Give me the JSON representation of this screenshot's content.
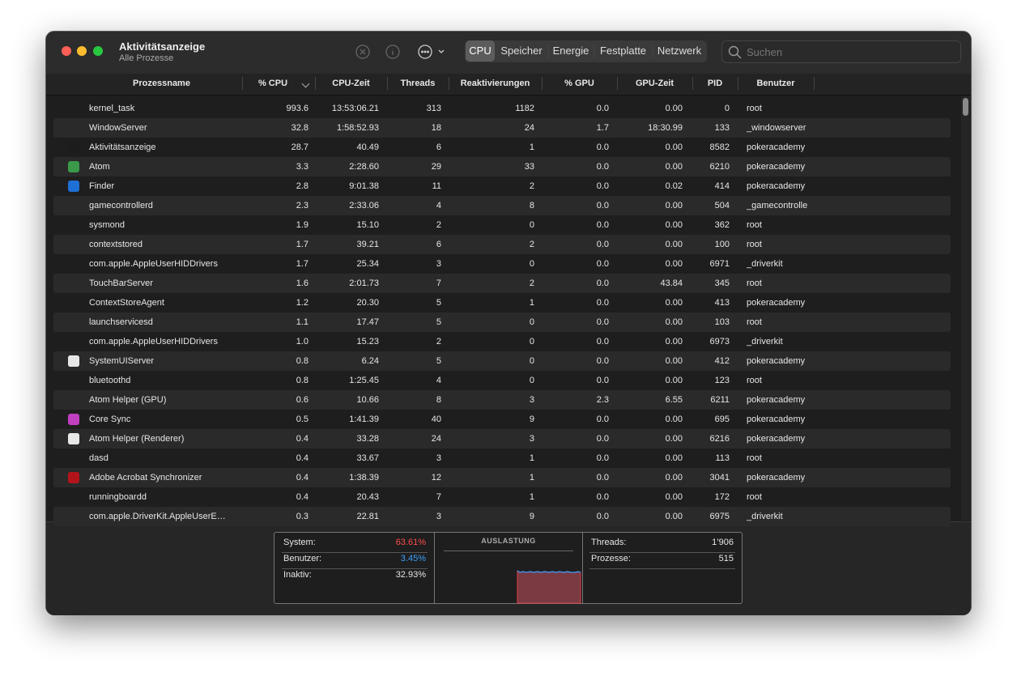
{
  "window": {
    "title": "Aktivitätsanzeige",
    "subtitle": "Alle Prozesse"
  },
  "tabs": [
    "CPU",
    "Speicher",
    "Energie",
    "Festplatte",
    "Netzwerk"
  ],
  "search_placeholder": "Suchen",
  "table": {
    "columns": [
      "Prozessname",
      "% CPU",
      "CPU-Zeit",
      "Threads",
      "Reaktivierungen",
      "% GPU",
      "GPU-Zeit",
      "PID",
      "Benutzer"
    ],
    "rows": [
      [
        "kernel_task",
        "993.6",
        "13:53:06.21",
        "313",
        "1182",
        "0.0",
        "0.00",
        "0",
        "root"
      ],
      [
        "WindowServer",
        "32.8",
        "1:58:52.93",
        "18",
        "24",
        "1.7",
        "18:30.99",
        "133",
        "_windowserver"
      ],
      [
        "Aktivitätsanzeige",
        "28.7",
        "40.49",
        "6",
        "1",
        "0.0",
        "0.00",
        "8582",
        "pokeracademy"
      ],
      [
        "Atom",
        "3.3",
        "2:28.60",
        "29",
        "33",
        "0.0",
        "0.00",
        "6210",
        "pokeracademy"
      ],
      [
        "Finder",
        "2.8",
        "9:01.38",
        "11",
        "2",
        "0.0",
        "0.02",
        "414",
        "pokeracademy"
      ],
      [
        "gamecontrollerd",
        "2.3",
        "2:33.06",
        "4",
        "8",
        "0.0",
        "0.00",
        "504",
        "_gamecontrolle"
      ],
      [
        "sysmond",
        "1.9",
        "15.10",
        "2",
        "0",
        "0.0",
        "0.00",
        "362",
        "root"
      ],
      [
        "contextstored",
        "1.7",
        "39.21",
        "6",
        "2",
        "0.0",
        "0.00",
        "100",
        "root"
      ],
      [
        "com.apple.AppleUserHIDDrivers",
        "1.7",
        "25.34",
        "3",
        "0",
        "0.0",
        "0.00",
        "6971",
        "_driverkit"
      ],
      [
        "TouchBarServer",
        "1.6",
        "2:01.73",
        "7",
        "2",
        "0.0",
        "43.84",
        "345",
        "root"
      ],
      [
        "ContextStoreAgent",
        "1.2",
        "20.30",
        "5",
        "1",
        "0.0",
        "0.00",
        "413",
        "pokeracademy"
      ],
      [
        "launchservicesd",
        "1.1",
        "17.47",
        "5",
        "0",
        "0.0",
        "0.00",
        "103",
        "root"
      ],
      [
        "com.apple.AppleUserHIDDrivers",
        "1.0",
        "15.23",
        "2",
        "0",
        "0.0",
        "0.00",
        "6973",
        "_driverkit"
      ],
      [
        "SystemUIServer",
        "0.8",
        "6.24",
        "5",
        "0",
        "0.0",
        "0.00",
        "412",
        "pokeracademy"
      ],
      [
        "bluetoothd",
        "0.8",
        "1:25.45",
        "4",
        "0",
        "0.0",
        "0.00",
        "123",
        "root"
      ],
      [
        "Atom Helper (GPU)",
        "0.6",
        "10.66",
        "8",
        "3",
        "2.3",
        "6.55",
        "6211",
        "pokeracademy"
      ],
      [
        "Core Sync",
        "0.5",
        "1:41.39",
        "40",
        "9",
        "0.0",
        "0.00",
        "695",
        "pokeracademy"
      ],
      [
        "Atom Helper (Renderer)",
        "0.4",
        "33.28",
        "24",
        "3",
        "0.0",
        "0.00",
        "6216",
        "pokeracademy"
      ],
      [
        "dasd",
        "0.4",
        "33.67",
        "3",
        "1",
        "0.0",
        "0.00",
        "113",
        "root"
      ],
      [
        "Adobe Acrobat Synchronizer",
        "0.4",
        "1:38.39",
        "12",
        "1",
        "0.0",
        "0.00",
        "3041",
        "pokeracademy"
      ],
      [
        "runningboardd",
        "0.4",
        "20.43",
        "7",
        "1",
        "0.0",
        "0.00",
        "172",
        "root"
      ],
      [
        "com.apple.DriverKit.AppleUserE…",
        "0.3",
        "22.81",
        "3",
        "9",
        "0.0",
        "0.00",
        "6975",
        "_driverkit"
      ]
    ]
  },
  "summary": {
    "left": [
      [
        "System:",
        "63.61%"
      ],
      [
        "Benutzer:",
        "3.45%"
      ],
      [
        "Inaktiv:",
        "32.93%"
      ]
    ],
    "chart_title": "AUSLASTUNG",
    "right": [
      [
        "Threads:",
        "1’906"
      ],
      [
        "Prozesse:",
        "515"
      ]
    ]
  }
}
